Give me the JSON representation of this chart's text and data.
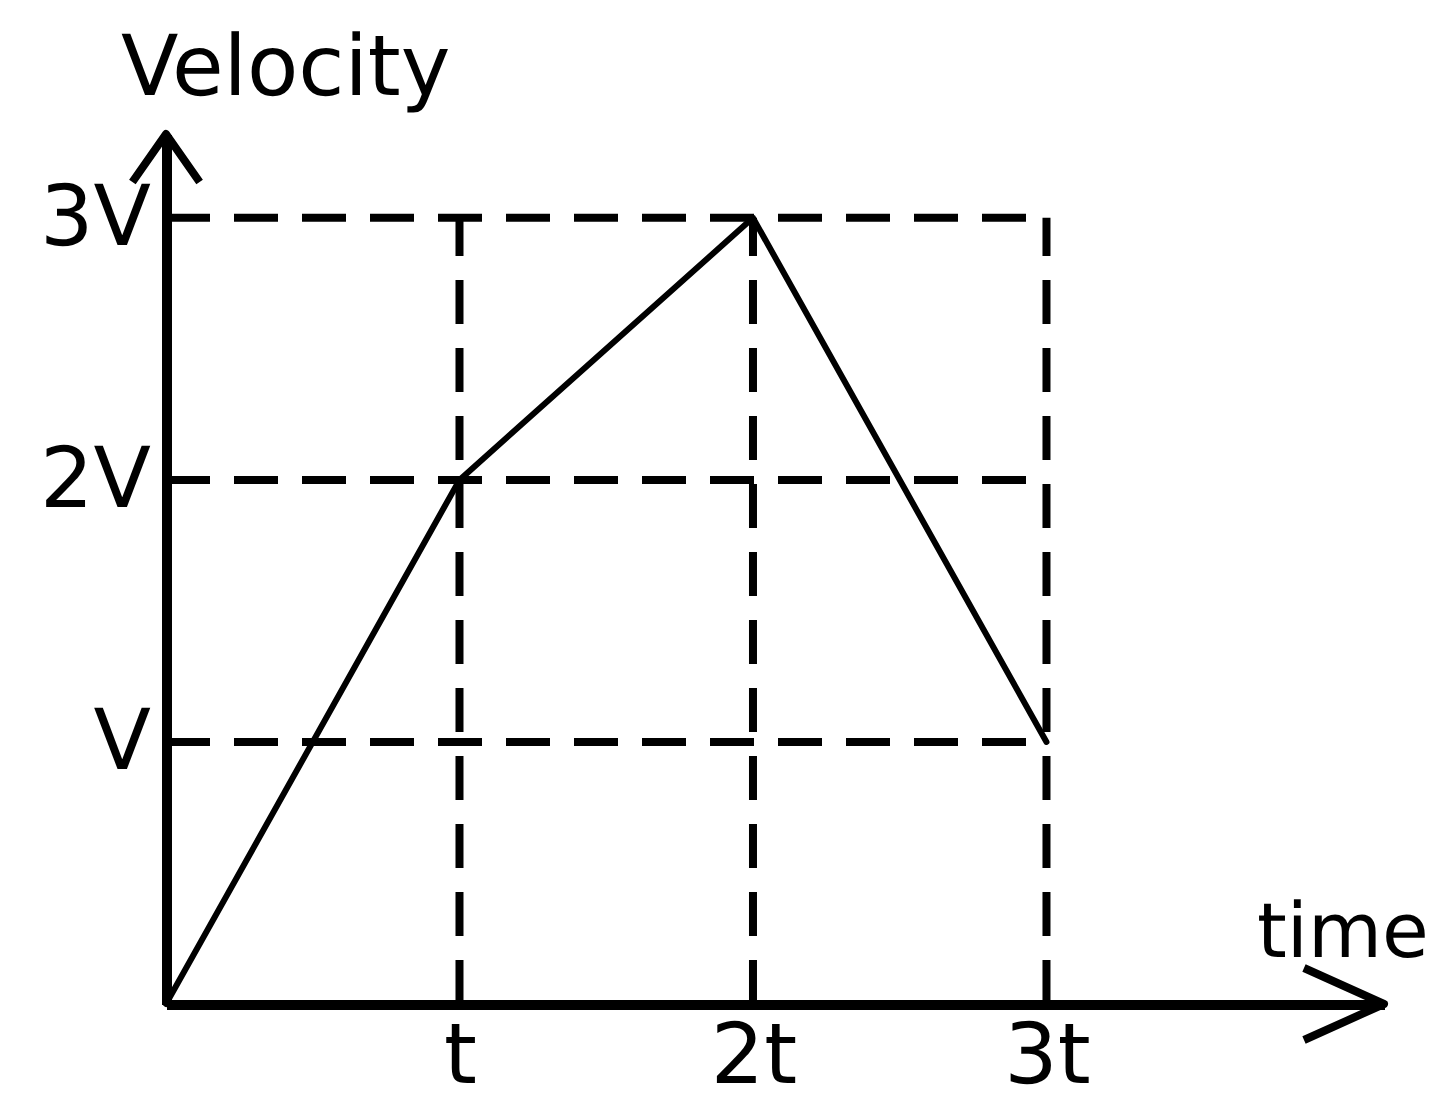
{
  "chart_data": {
    "type": "line",
    "xlabel": "time",
    "ylabel": "Velocity",
    "x": [
      0,
      1,
      2,
      3
    ],
    "series": [
      {
        "color": "#000000",
        "values": [
          0,
          2,
          3,
          1
        ]
      }
    ],
    "xlim": [
      0,
      4.15
    ],
    "ylim": [
      0,
      3.32
    ],
    "xticks": [
      {
        "value": 1,
        "label": "t"
      },
      {
        "value": 2,
        "label": "2t"
      },
      {
        "value": 3,
        "label": "3t"
      }
    ],
    "yticks": [
      {
        "value": 1,
        "label": "V"
      },
      {
        "value": 2,
        "label": "2V"
      },
      {
        "value": 3,
        "label": "3V"
      }
    ],
    "grid": true,
    "line_style": "solid"
  }
}
